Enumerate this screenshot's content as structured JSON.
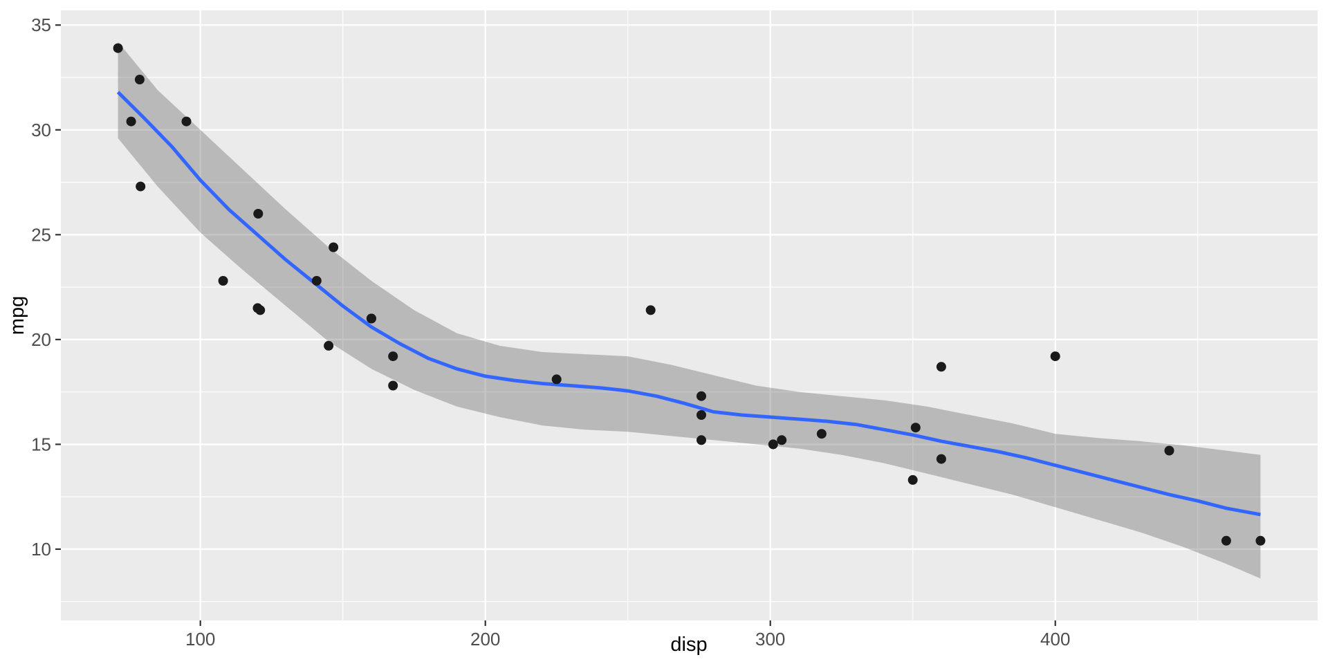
{
  "chart_data": {
    "type": "scatter",
    "title": "",
    "xlabel": "disp",
    "ylabel": "mpg",
    "legend": "none",
    "grid": "on",
    "panel_background": "#EBEBEB",
    "grid_color": "#FFFFFF",
    "point_color": "#1A1A1A",
    "smooth_line_color": "#3366FF",
    "ribbon_color": "rgba(106,106,106,0.38)",
    "axis_text_color": "#4D4D4D",
    "axis_title_color": "#000000",
    "tick_mark_color": "#333333",
    "xlim": [
      51.05,
      492.05
    ],
    "ylim": [
      6.6,
      35.7
    ],
    "x_major_ticks": [
      100,
      200,
      300,
      400
    ],
    "x_minor_ticks": [
      150,
      250,
      350,
      450
    ],
    "y_major_ticks": [
      10,
      15,
      20,
      25,
      30,
      35
    ],
    "y_minor_ticks": [
      7.5,
      12.5,
      17.5,
      22.5,
      27.5,
      32.5
    ],
    "x_tick_labels": [
      "100",
      "200",
      "300",
      "400"
    ],
    "y_tick_labels": [
      "10",
      "15",
      "20",
      "25",
      "30",
      "35"
    ],
    "points": [
      [
        160.0,
        21.0
      ],
      [
        160.0,
        21.0
      ],
      [
        108.0,
        22.8
      ],
      [
        258.0,
        21.4
      ],
      [
        360.0,
        18.7
      ],
      [
        225.0,
        18.1
      ],
      [
        360.0,
        14.3
      ],
      [
        146.7,
        24.4
      ],
      [
        140.8,
        22.8
      ],
      [
        167.6,
        19.2
      ],
      [
        167.6,
        17.8
      ],
      [
        275.8,
        16.4
      ],
      [
        275.8,
        17.3
      ],
      [
        275.8,
        15.2
      ],
      [
        472.0,
        10.4
      ],
      [
        460.0,
        10.4
      ],
      [
        440.0,
        14.7
      ],
      [
        78.7,
        32.4
      ],
      [
        75.7,
        30.4
      ],
      [
        71.1,
        33.9
      ],
      [
        120.1,
        21.5
      ],
      [
        318.0,
        15.5
      ],
      [
        304.0,
        15.2
      ],
      [
        350.0,
        13.3
      ],
      [
        400.0,
        19.2
      ],
      [
        79.0,
        27.3
      ],
      [
        120.3,
        26.0
      ],
      [
        95.1,
        30.4
      ],
      [
        351.0,
        15.8
      ],
      [
        145.0,
        19.7
      ],
      [
        301.0,
        15.0
      ],
      [
        121.0,
        21.4
      ]
    ],
    "smooth": {
      "name": "loess-fit",
      "x": [
        71.1,
        80,
        90,
        100,
        110,
        120,
        130,
        140,
        150,
        160,
        170,
        180,
        190,
        200,
        210,
        220,
        230,
        240,
        250,
        260,
        270,
        280,
        290,
        300,
        310,
        320,
        330,
        340,
        350,
        360,
        370,
        380,
        390,
        400,
        410,
        420,
        430,
        440,
        450,
        460,
        472
      ],
      "y": [
        31.8,
        30.6,
        29.2,
        27.6,
        26.2,
        25.0,
        23.8,
        22.7,
        21.6,
        20.6,
        19.8,
        19.1,
        18.6,
        18.25,
        18.05,
        17.9,
        17.8,
        17.7,
        17.55,
        17.3,
        16.95,
        16.55,
        16.4,
        16.3,
        16.2,
        16.1,
        15.95,
        15.7,
        15.45,
        15.15,
        14.9,
        14.65,
        14.35,
        14.0,
        13.65,
        13.3,
        12.95,
        12.6,
        12.3,
        11.95,
        11.65
      ]
    },
    "ribbon": {
      "x": [
        71.1,
        85,
        100,
        115,
        130,
        145,
        160,
        175,
        190,
        205,
        220,
        235,
        250,
        265,
        280,
        295,
        310,
        325,
        340,
        355,
        370,
        385,
        400,
        415,
        430,
        445,
        460,
        472
      ],
      "upper": [
        34.2,
        31.9,
        30.0,
        28.1,
        26.2,
        24.4,
        22.8,
        21.4,
        20.3,
        19.7,
        19.4,
        19.3,
        19.2,
        18.8,
        18.3,
        17.8,
        17.5,
        17.3,
        17.1,
        16.8,
        16.4,
        16.0,
        15.5,
        15.3,
        15.15,
        14.95,
        14.7,
        14.5
      ],
      "lower": [
        29.6,
        27.3,
        25.1,
        23.3,
        21.6,
        19.9,
        18.6,
        17.6,
        16.8,
        16.3,
        15.9,
        15.7,
        15.6,
        15.4,
        15.2,
        15.0,
        14.8,
        14.5,
        14.1,
        13.6,
        13.1,
        12.6,
        12.0,
        11.4,
        10.8,
        10.1,
        9.3,
        8.6
      ]
    }
  }
}
